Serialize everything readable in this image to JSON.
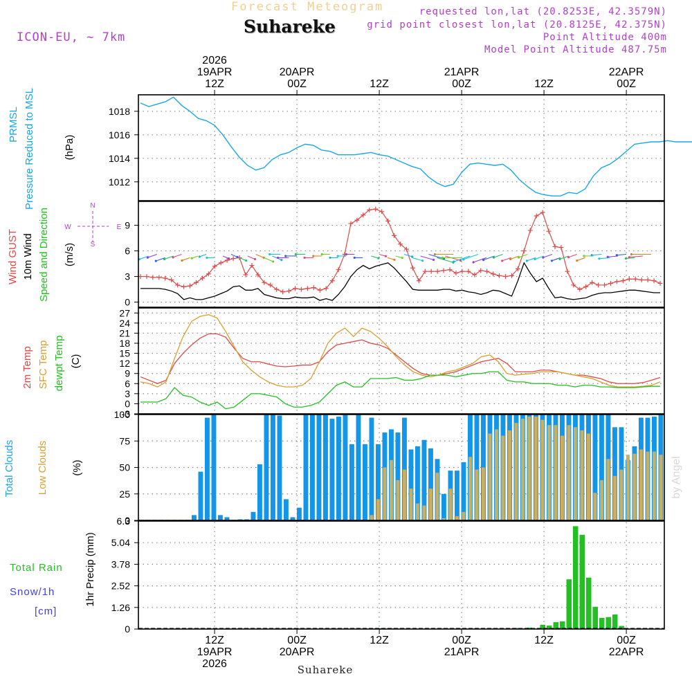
{
  "header": {
    "app_title": "Forecast Meteogram",
    "location": "Suhareke",
    "model": "ICON-EU, ~ 7km",
    "requested": "requested lon,lat (20.8253E, 42.3579N)",
    "grid_point": "grid point closest lon,lat (20.8125E, 42.375N)",
    "point_altitude": "Point Altitude 400m",
    "model_point_altitude": "Model Point Altitude 487.75m",
    "watermark": "by Angel",
    "footer_location": "Suhareke"
  },
  "colors": {
    "pressure": "#1aa6e6",
    "gust": "#e04848",
    "wind10m": "#000000",
    "temp2m": "#e04848",
    "sfc": "#d8a030",
    "dewpt": "#22c022",
    "total_clouds": "#1496e8",
    "low_clouds": "#c8b060",
    "rain": "#22c022",
    "snow": "#4040e0",
    "meta": "#b040c8"
  },
  "time_axis": {
    "top_labels": [
      {
        "idx": 9,
        "lines": [
          "2026",
          "19APR",
          "12Z"
        ]
      },
      {
        "idx": 19,
        "lines": [
          "20APR",
          "00Z"
        ]
      },
      {
        "idx": 29,
        "lines": [
          "12Z"
        ]
      },
      {
        "idx": 39,
        "lines": [
          "21APR",
          "00Z"
        ]
      },
      {
        "idx": 49,
        "lines": [
          "12Z"
        ]
      },
      {
        "idx": 59,
        "lines": [
          "22APR",
          "00Z"
        ]
      }
    ],
    "bottom_labels": [
      {
        "idx": 9,
        "lines": [
          "12Z",
          "19APR",
          "2026"
        ]
      },
      {
        "idx": 19,
        "lines": [
          "00Z",
          "20APR"
        ]
      },
      {
        "idx": 29,
        "lines": [
          "12Z"
        ]
      },
      {
        "idx": 39,
        "lines": [
          "00Z",
          "21APR"
        ]
      },
      {
        "idx": 49,
        "lines": [
          "12Z"
        ]
      },
      {
        "idx": 59,
        "lines": [
          "00Z",
          "22APR"
        ]
      }
    ]
  },
  "chart_data": [
    {
      "type": "line",
      "title": "PRMSL Pressure Reduced to MSL",
      "ylabel": "(hPa)",
      "ylim": [
        1010.4,
        1019.4
      ],
      "yticks": [
        1012,
        1014,
        1016,
        1018
      ],
      "series": [
        {
          "name": "PRMSL",
          "values": [
            1018.7,
            1018.4,
            1018.6,
            1018.8,
            1019.2,
            1018.5,
            1018.0,
            1017.4,
            1017.2,
            1016.8,
            1016.0,
            1015.0,
            1014.1,
            1013.4,
            1013.0,
            1013.2,
            1013.9,
            1014.3,
            1014.5,
            1014.9,
            1015.2,
            1015.1,
            1014.7,
            1014.6,
            1014.3,
            1014.3,
            1014.3,
            1014.4,
            1014.5,
            1014.3,
            1014.2,
            1013.9,
            1013.6,
            1013.3,
            1013.1,
            1012.4,
            1011.9,
            1011.6,
            1011.8,
            1012.8,
            1013.5,
            1013.6,
            1013.5,
            1013.4,
            1013.5,
            1013.0,
            1012.2,
            1011.6,
            1011.1,
            1010.9,
            1010.8,
            1010.8,
            1011.1,
            1011.0,
            1011.4,
            1012.5,
            1013.2,
            1013.5,
            1014.0,
            1014.6,
            1015.2,
            1015.3,
            1015.4,
            1015.4,
            1015.5,
            1015.4,
            1015.4,
            1015.4,
            1015.3,
            1015.2,
            1015.4,
            1015.8
          ]
        }
      ]
    },
    {
      "type": "line",
      "title": "Wind GUST / 10m Wind Speed and Direction",
      "ylabel": "(m/s)",
      "ylim": [
        -0.6,
        11.8
      ],
      "yticks": [
        0,
        3,
        6,
        9
      ],
      "compass": {
        "n": "N",
        "s": "S",
        "e": "E",
        "w": "W"
      },
      "series": [
        {
          "name": "Wind GUST",
          "values": [
            3.0,
            3.0,
            2.9,
            2.9,
            2.8,
            2.6,
            2.0,
            1.8,
            1.9,
            2.3,
            2.8,
            3.3,
            4.2,
            4.6,
            4.9,
            5.1,
            5.2,
            3.2,
            4.3,
            3.2,
            2.3,
            2.0,
            1.5,
            1.2,
            1.3,
            1.6,
            1.5,
            1.6,
            1.7,
            1.4,
            1.6,
            2.5,
            3.8,
            5.6,
            9.2,
            9.6,
            10.2,
            10.8,
            10.9,
            10.6,
            9.5,
            7.8,
            6.8,
            6.2,
            4.0,
            2.5,
            3.6,
            3.6,
            3.6,
            3.7,
            3.8,
            3.4,
            3.6,
            3.6,
            3.2,
            3.7,
            3.6,
            3.3,
            3.1,
            3.0,
            3.1,
            3.9,
            6.0,
            8.4,
            10.1,
            10.5,
            8.3,
            6.5,
            6.4,
            3.6,
            2.0,
            1.5,
            1.8,
            2.3,
            2.0,
            2.0,
            2.2,
            2.4,
            2.5,
            2.7,
            2.7,
            2.6,
            2.6,
            2.5,
            2.2
          ]
        },
        {
          "name": "10m Wind",
          "values": [
            1.6,
            1.6,
            1.6,
            1.6,
            1.5,
            1.3,
            1.0,
            0.3,
            0.5,
            0.3,
            0.3,
            0.5,
            0.7,
            1.0,
            1.3,
            1.8,
            1.9,
            1.4,
            1.4,
            1.6,
            0.9,
            0.7,
            0.5,
            0.4,
            0.4,
            0.6,
            0.5,
            0.5,
            0.6,
            0.2,
            0.4,
            0.2,
            0.9,
            1.8,
            3.0,
            3.8,
            4.3,
            3.9,
            4.2,
            4.4,
            4.6,
            4.0,
            3.2,
            2.4,
            1.5,
            1.4,
            1.4,
            1.4,
            1.4,
            1.5,
            1.5,
            1.3,
            1.4,
            1.2,
            1.1,
            0.9,
            1.1,
            1.4,
            1.3,
            1.0,
            0.7,
            2.5,
            4.6,
            3.4,
            2.4,
            2.8,
            1.6,
            0.5,
            0.6,
            0.4,
            0.3,
            0.4,
            0.5,
            0.8,
            1.0,
            1.1,
            1.1,
            1.2,
            1.3,
            1.4,
            1.4,
            1.3,
            1.2,
            1.1,
            1.1
          ]
        }
      ]
    },
    {
      "type": "line",
      "title": "2m Temp / SFC Temp / dewpt Temp",
      "ylabel": "(C)",
      "ylim": [
        -3,
        28.5
      ],
      "yticks": [
        -3,
        0,
        3,
        6,
        9,
        12,
        15,
        18,
        21,
        24,
        27
      ],
      "series": [
        {
          "name": "2m Temp",
          "values": [
            8.0,
            7.0,
            6.0,
            7.0,
            12.0,
            15.0,
            17.5,
            19.5,
            20.8,
            20.8,
            19.8,
            16.5,
            13.5,
            12.5,
            12.5,
            11.8,
            11.2,
            11.0,
            11.2,
            11.5,
            11.5,
            12.5,
            15.5,
            17.5,
            18.0,
            18.5,
            19.0,
            18.0,
            17.5,
            16.5,
            14.5,
            12.5,
            10.5,
            9.0,
            8.5,
            8.5,
            9.0,
            9.5,
            10.5,
            11.5,
            12.5,
            13.0,
            13.5,
            12.0,
            9.5,
            9.5,
            9.5,
            10.0,
            10.0,
            9.5,
            9.0,
            8.5,
            8.5,
            8.0,
            7.5,
            6.5,
            6.0,
            6.0,
            6.0,
            6.3,
            7.0,
            7.8
          ]
        },
        {
          "name": "SFC Temp",
          "values": [
            6.5,
            6.0,
            5.0,
            6.5,
            13.5,
            20.0,
            24.5,
            26.0,
            26.5,
            25.5,
            21.5,
            17.0,
            12.5,
            10.0,
            8.0,
            6.5,
            5.5,
            5.0,
            5.0,
            5.5,
            7.5,
            12.5,
            18.0,
            21.0,
            22.5,
            20.0,
            22.5,
            21.5,
            19.5,
            17.0,
            14.0,
            11.5,
            9.5,
            8.5,
            8.0,
            8.5,
            9.5,
            10.0,
            11.0,
            12.0,
            14.0,
            14.5,
            12.5,
            9.0,
            8.5,
            8.8,
            9.0,
            9.5,
            9.5,
            9.5,
            9.0,
            8.5,
            8.0,
            7.5,
            6.5,
            5.5,
            5.0,
            5.0,
            5.0,
            5.2,
            5.5,
            6.5
          ]
        },
        {
          "name": "dewpt Temp",
          "values": [
            0.5,
            0.5,
            0.5,
            1.5,
            4.8,
            2.5,
            2.0,
            0.5,
            -0.5,
            0.5,
            -1.5,
            -1.0,
            1.0,
            3.0,
            3.0,
            2.5,
            2.0,
            0.0,
            -1.0,
            -1.0,
            -0.5,
            0.5,
            3.0,
            5.5,
            6.5,
            5.0,
            5.0,
            7.5,
            7.5,
            7.5,
            7.8,
            7.0,
            7.0,
            7.5,
            8.5,
            8.5,
            8.5,
            8.0,
            8.5,
            9.0,
            9.0,
            9.5,
            9.5,
            7.0,
            6.5,
            6.5,
            6.0,
            6.0,
            6.0,
            5.5,
            5.5,
            5.0,
            5.5,
            5.5,
            5.0,
            5.0,
            4.8,
            4.8,
            4.8,
            5.0,
            5.2,
            5.2
          ]
        }
      ]
    },
    {
      "type": "bar",
      "title": "Total Clouds / Low Clouds",
      "ylabel": "(%)",
      "ylim": [
        0,
        100
      ],
      "yticks": [
        0,
        25,
        50,
        75,
        100
      ],
      "series": [
        {
          "name": "Total Clouds",
          "values": [
            0,
            0,
            0,
            0,
            0,
            0,
            0,
            0,
            5,
            46,
            97,
            100,
            5,
            3,
            0,
            1,
            1,
            8,
            53,
            100,
            100,
            99,
            20,
            3,
            12,
            100,
            100,
            100,
            100,
            96,
            98,
            100,
            72,
            100,
            72,
            97,
            72,
            83,
            86,
            83,
            97,
            67,
            70,
            76,
            68,
            58,
            25,
            47,
            47,
            55,
            100,
            100,
            100,
            100,
            100,
            100,
            100,
            100,
            100,
            100,
            100,
            100,
            100,
            100,
            100,
            100,
            100,
            100,
            100,
            100,
            100,
            100,
            88,
            88,
            57,
            70,
            97,
            97,
            98,
            100
          ]
        },
        {
          "name": "Low Clouds",
          "values": [
            0,
            0,
            0,
            0,
            0,
            0,
            0,
            0,
            0,
            0,
            0,
            0,
            0,
            0,
            0,
            0,
            0,
            0,
            0,
            0,
            0,
            0,
            0,
            0,
            0,
            0,
            0,
            0,
            0,
            0,
            0,
            0,
            0,
            0,
            0,
            5,
            20,
            50,
            57,
            38,
            48,
            30,
            16,
            14,
            30,
            45,
            2,
            30,
            4,
            8,
            60,
            48,
            50,
            82,
            86,
            80,
            85,
            92,
            96,
            98,
            98,
            95,
            90,
            90,
            80,
            90,
            88,
            85,
            82,
            26,
            38,
            58,
            42,
            48,
            62,
            63,
            67,
            65,
            65,
            62
          ]
        }
      ]
    },
    {
      "type": "bar",
      "title": "Total Rain / Snow/1h",
      "ylabel": "1hr Precip (mm)",
      "legend": {
        "rain": "Total Rain",
        "snow": "Snow/1h",
        "snow_unit": "[cm]"
      },
      "ylim": [
        0,
        6.3
      ],
      "yticks": [
        "0",
        "1.26",
        "2.52",
        "3.78",
        "5.04",
        "6.3"
      ],
      "series": [
        {
          "name": "Total Rain",
          "values": [
            0,
            0,
            0,
            0,
            0,
            0,
            0,
            0,
            0,
            0,
            0,
            0,
            0,
            0,
            0,
            0,
            0,
            0,
            0,
            0,
            0,
            0,
            0,
            0,
            0,
            0,
            0,
            0,
            0,
            0,
            0,
            0,
            0,
            0,
            0,
            0,
            0.04,
            0,
            0.03,
            0,
            0,
            0,
            0,
            0,
            0,
            0,
            0,
            0,
            0,
            0,
            0,
            0,
            0,
            0,
            0,
            0,
            0,
            0.06,
            0.03,
            0.08,
            0,
            0.25,
            0.2,
            0.4,
            0.45,
            2.9,
            6.0,
            5.5,
            3.0,
            1.3,
            0.65,
            0.7,
            0.85,
            0.18,
            0,
            0,
            0,
            0,
            0,
            0
          ]
        }
      ]
    }
  ]
}
